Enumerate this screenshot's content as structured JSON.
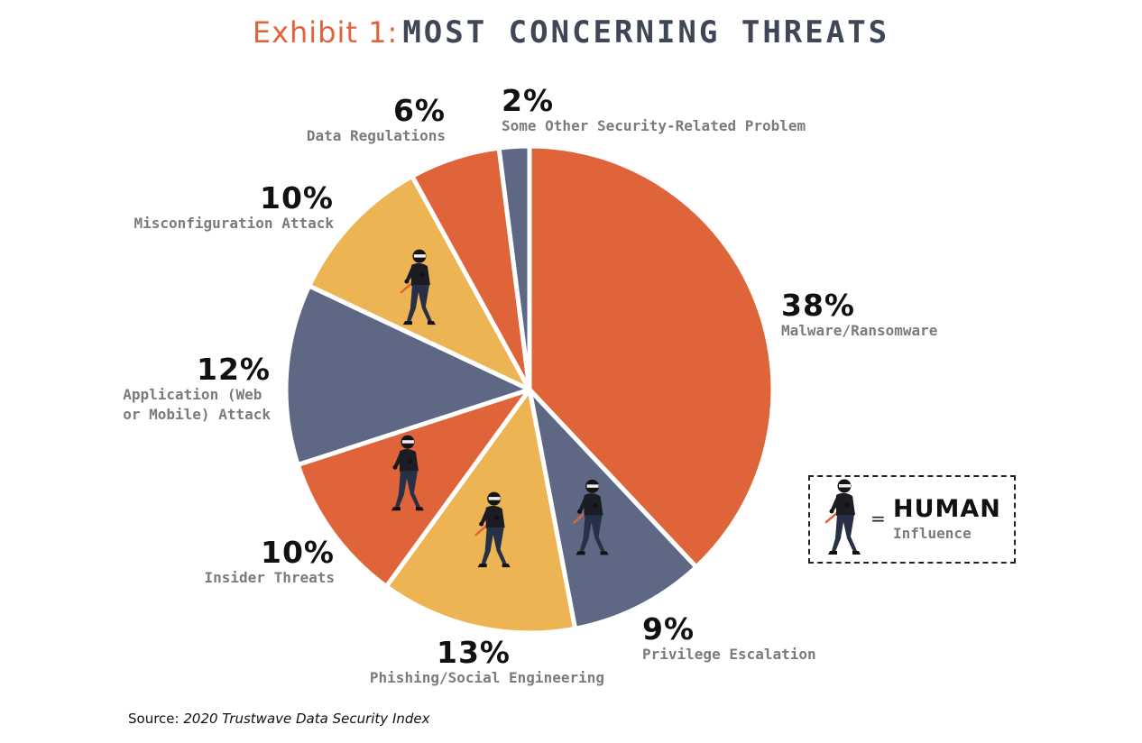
{
  "title": {
    "prefix": "Exhibit 1:",
    "main": "MOST CONCERNING THREATS"
  },
  "chart_data": {
    "type": "pie",
    "start_angle_deg": 0,
    "direction": "clockwise",
    "slices": [
      {
        "label": "Malware/Ransomware",
        "value": 38,
        "value_label": "38%",
        "color": "#e0643a",
        "human_influence": false
      },
      {
        "label": "Privilege Escalation",
        "value": 9,
        "value_label": "9%",
        "color": "#5e6885",
        "human_influence": true
      },
      {
        "label": "Phishing/Social Engineering",
        "value": 13,
        "value_label": "13%",
        "color": "#edb453",
        "human_influence": true
      },
      {
        "label": "Insider Threats",
        "value": 10,
        "value_label": "10%",
        "color": "#e0643a",
        "human_influence": true
      },
      {
        "label": "Application (Web or Mobile) Attack",
        "value": 12,
        "value_label": "12%",
        "color": "#5e6885",
        "human_influence": false
      },
      {
        "label": "Misconfiguration Attack",
        "value": 10,
        "value_label": "10%",
        "color": "#edb453",
        "human_influence": true
      },
      {
        "label": "Data Regulations",
        "value": 6,
        "value_label": "6%",
        "color": "#e0643a",
        "human_influence": false
      },
      {
        "label": "Some Other Security-Related Problem",
        "value": 2,
        "value_label": "2%",
        "color": "#5e6885",
        "human_influence": false
      }
    ]
  },
  "labels": {
    "malware": {
      "pct": "38%",
      "line1": "Malware/Ransomware"
    },
    "privilege": {
      "pct": "9%",
      "line1": "Privilege Escalation"
    },
    "phishing": {
      "pct": "13%",
      "line1": "Phishing/Social Engineering"
    },
    "insider": {
      "pct": "10%",
      "line1": "Insider Threats"
    },
    "application": {
      "pct": "12%",
      "line1": "Application (Web",
      "line2": "or Mobile) Attack"
    },
    "misconfig": {
      "pct": "10%",
      "line1": "Misconfiguration Attack"
    },
    "regulations": {
      "pct": "6%",
      "line1": "Data Regulations"
    },
    "other": {
      "pct": "2%",
      "line1": "Some Other Security-Related Problem"
    }
  },
  "legend": {
    "equals": "=",
    "title": "HUMAN",
    "subtitle": "Influence",
    "icon": "hacker-figure-icon"
  },
  "source": {
    "prefix": "Source:",
    "name": "2020 Trustwave Data Security Index"
  },
  "colors": {
    "orange": "#e0643a",
    "slate": "#5e6885",
    "yellow": "#edb453"
  }
}
